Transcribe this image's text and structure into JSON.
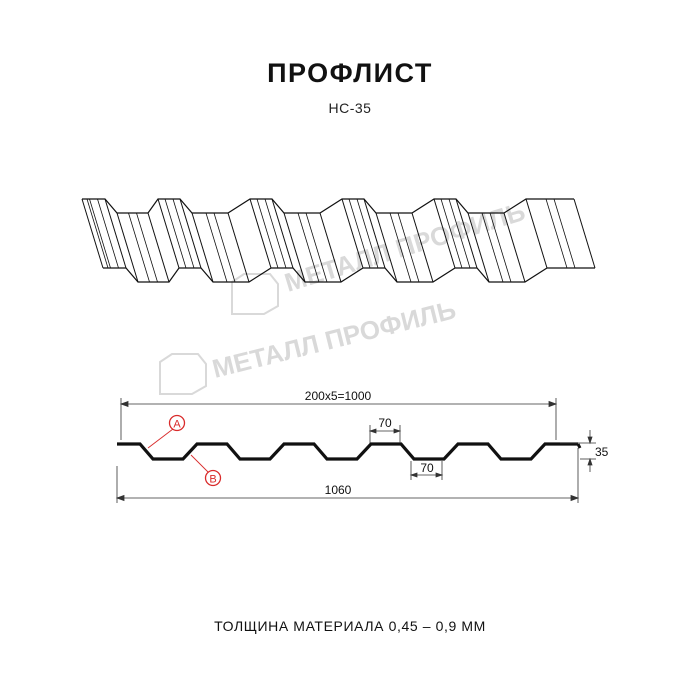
{
  "header": {
    "title": "ПРОФЛИСТ",
    "subtitle": "НС-35"
  },
  "watermark": {
    "text": "МЕТАЛЛ ПРОФИЛЬ"
  },
  "cross_section": {
    "dim_pitch": "200x5=1000",
    "dim_top_flat": "70",
    "dim_bottom_flat": "70",
    "dim_height": "35",
    "dim_total_width": "1060",
    "label_a": "A",
    "label_b": "B"
  },
  "footer": {
    "thickness": "ТОЛЩИНА МАТЕРИАЛА 0,45 – 0,9 ММ"
  },
  "colors": {
    "line": "#111111",
    "callout": "#d92b2b",
    "watermark": "#d9d9d9"
  }
}
